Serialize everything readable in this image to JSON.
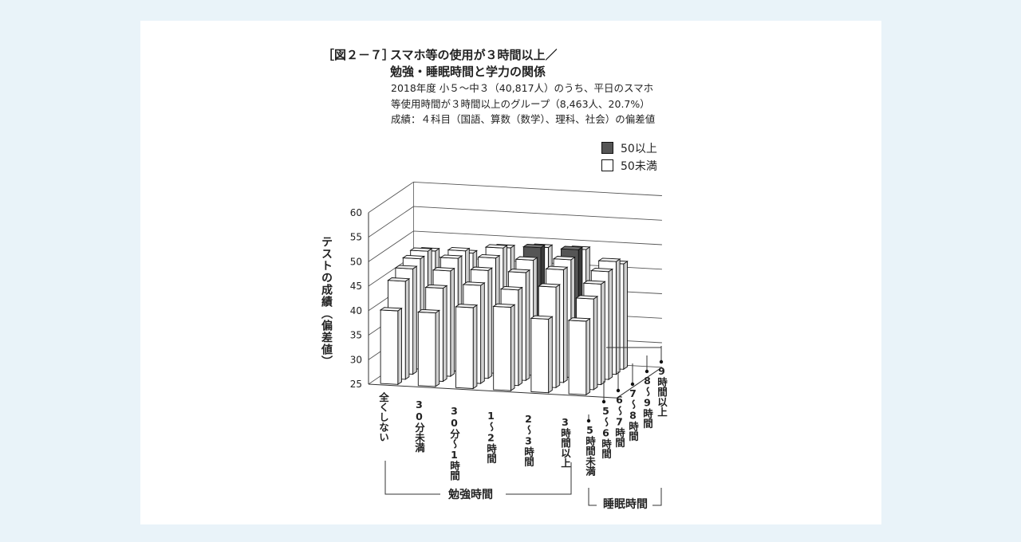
{
  "figure": {
    "label": "［図２－７］",
    "title_line1": "スマホ等の使用が３時間以上／",
    "title_line2": "勉強・睡眠時間と学力の関係",
    "subtitle_line1": "2018年度 小５～中３（40,817人）のうち、平日のスマホ",
    "subtitle_line2": "等使用時間が３時間以上のグループ（8,463人、20.7%）",
    "subtitle_line3": "成績：４科目（国語、算数（数学）、理科、社会）の偏差値"
  },
  "legend": [
    {
      "label": "50以上",
      "color": "#555555"
    },
    {
      "label": "50未満",
      "color": "#ffffff"
    }
  ],
  "chart_data": {
    "type": "bar",
    "subtype": "3d-bar",
    "ylabel": "テストの成績（偏差値）",
    "ylim": [
      25,
      60
    ],
    "yticks": [
      "25",
      "30",
      "35",
      "40",
      "45",
      "50",
      "55",
      "60"
    ],
    "xlabel": "勉強時間",
    "categories": [
      "全くしない",
      "30分未満",
      "30分～1時間",
      "1～2時間",
      "2～3時間",
      "3時間以上"
    ],
    "zlabel": "睡眠時間",
    "depth_categories": [
      "5時間未満",
      "5～6時間",
      "6～7時間",
      "7～8時間",
      "8～9時間",
      "9時間以上"
    ],
    "series": [
      {
        "name": "5時間未満",
        "values": [
          40.0,
          40.0,
          41.5,
          42.0,
          40.0,
          40.0
        ]
      },
      {
        "name": "5～6時間",
        "values": [
          45.0,
          44.0,
          45.0,
          44.5,
          45.5,
          43.5
        ]
      },
      {
        "name": "6～7時間",
        "values": [
          46.5,
          46.5,
          47.0,
          47.0,
          48.0,
          45.5
        ]
      },
      {
        "name": "7～8時間",
        "values": [
          47.5,
          48.0,
          48.5,
          48.5,
          49.0,
          47.0
        ]
      },
      {
        "name": "8～9時間",
        "values": [
          48.0,
          48.5,
          49.5,
          50.0,
          50.0,
          48.0
        ]
      },
      {
        "name": "9時間以上",
        "values": [
          47.0,
          47.0,
          48.5,
          49.0,
          49.0,
          46.5
        ]
      }
    ],
    "grid": true
  }
}
